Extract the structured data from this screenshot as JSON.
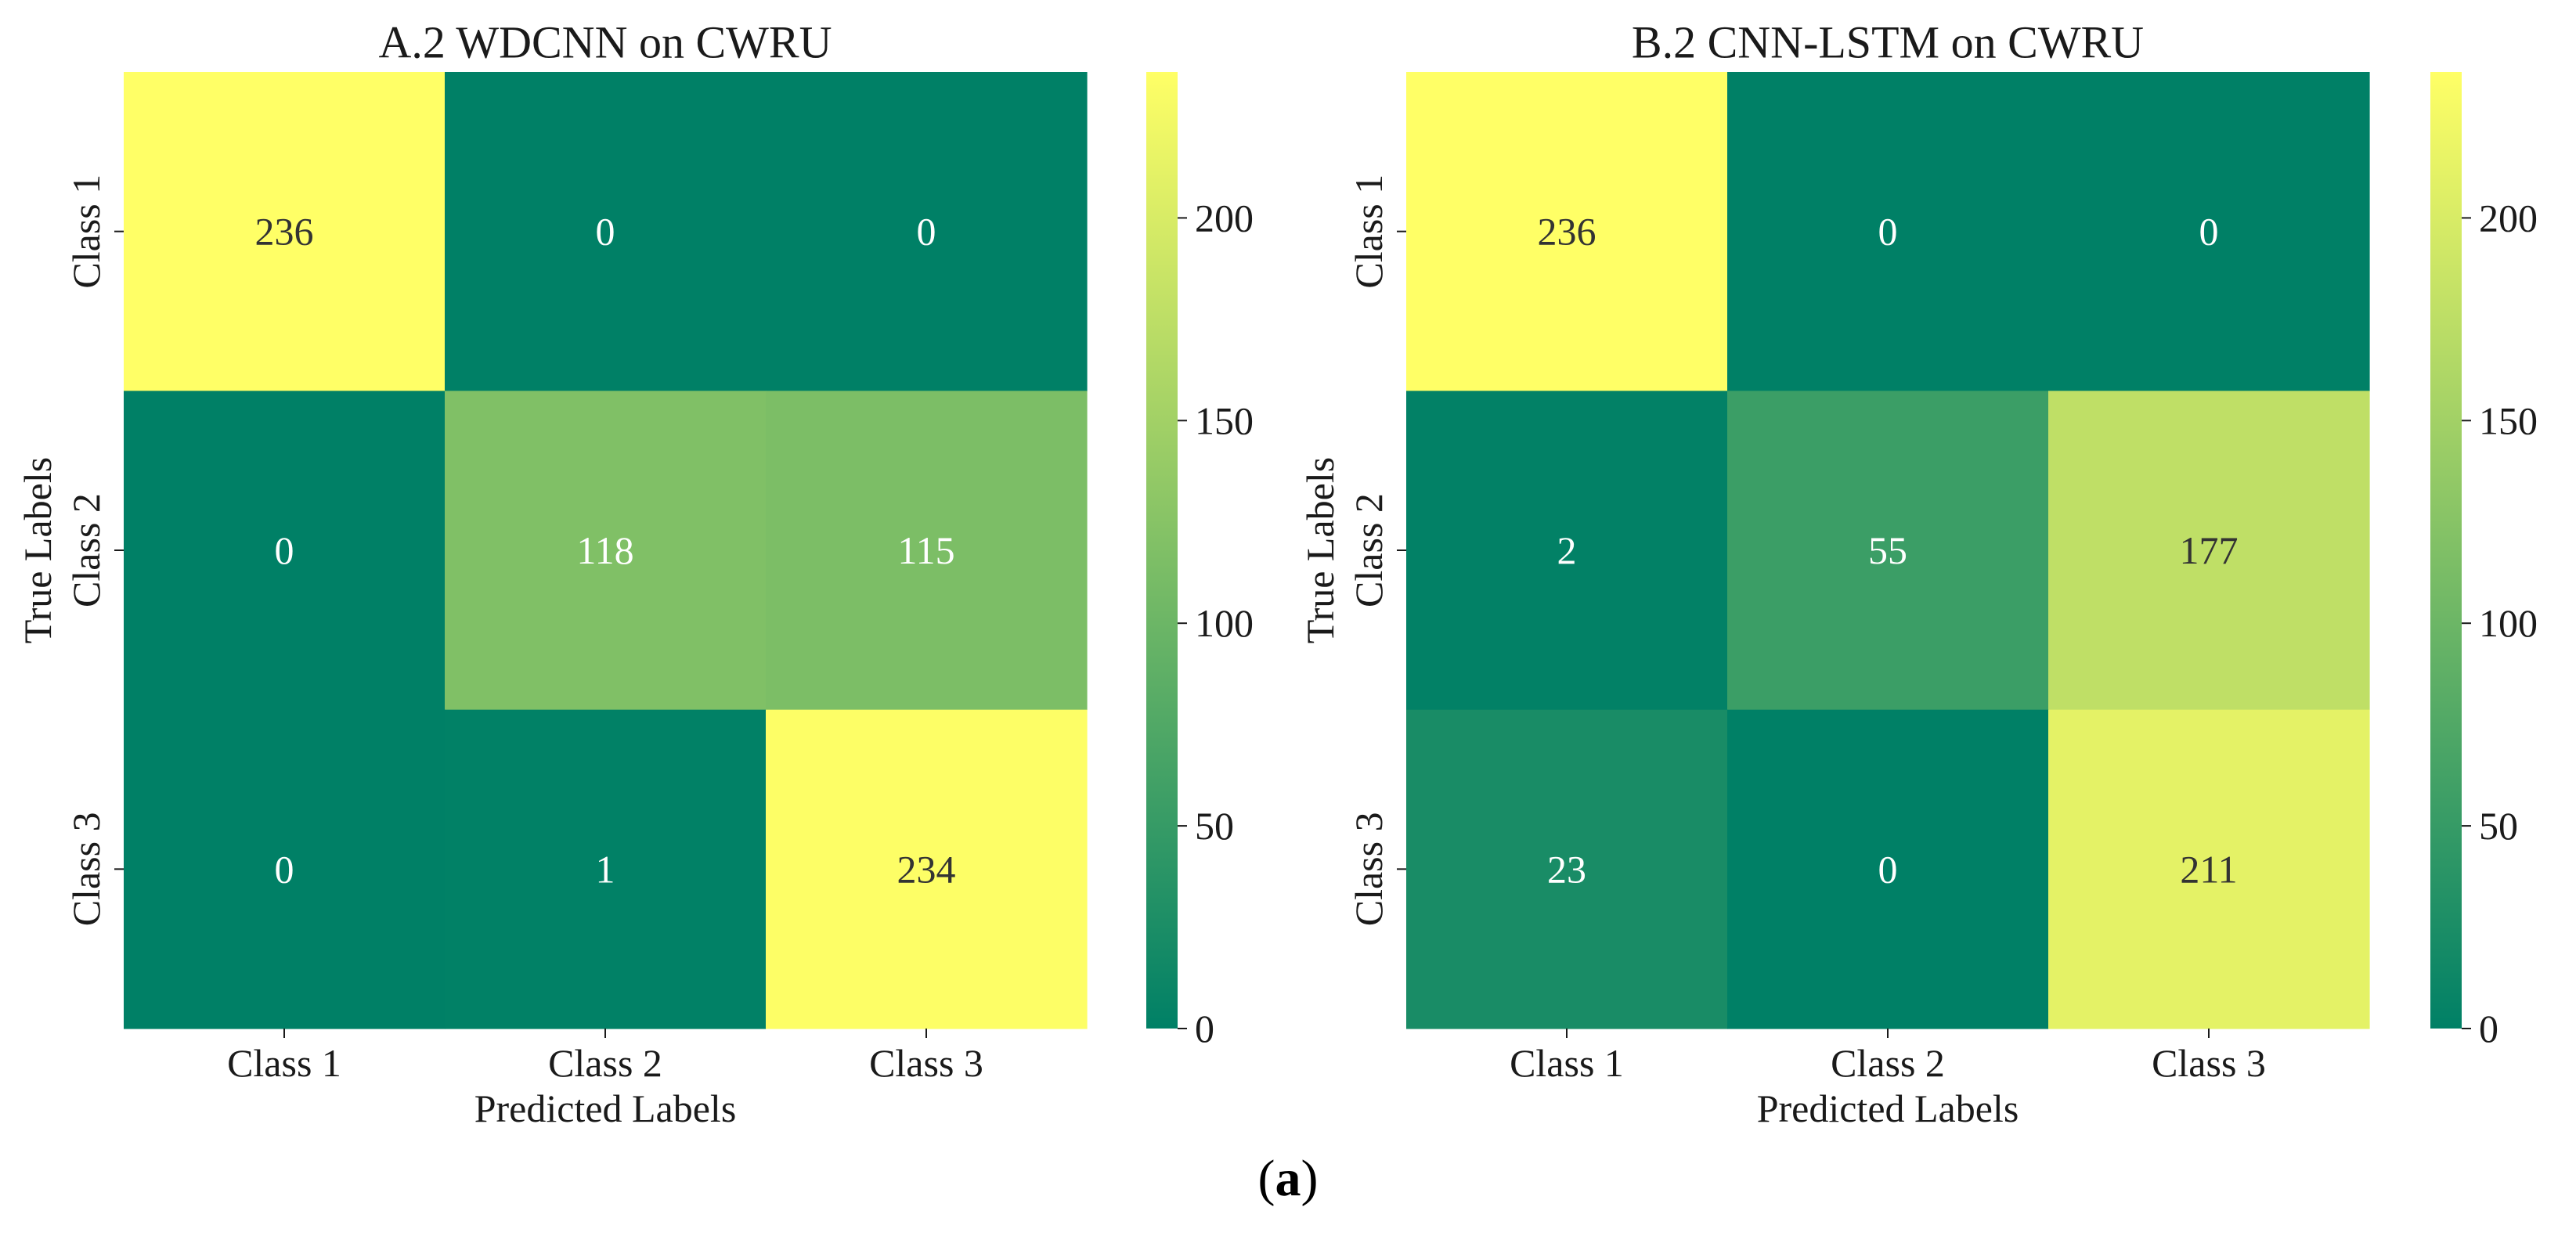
{
  "chart_data": [
    {
      "type": "heatmap",
      "title": "A.2 WDCNN on CWRU",
      "xlabel": "Predicted Labels",
      "ylabel": "True Labels",
      "x_categories": [
        "Class 1",
        "Class 2",
        "Class 3"
      ],
      "y_categories": [
        "Class 1",
        "Class 2",
        "Class 3"
      ],
      "values": [
        [
          236,
          0,
          0
        ],
        [
          0,
          118,
          115
        ],
        [
          0,
          1,
          234
        ]
      ],
      "colormap": "summer",
      "colorbar": {
        "range": [
          0,
          236
        ],
        "ticks": [
          0,
          50,
          100,
          150,
          200
        ]
      }
    },
    {
      "type": "heatmap",
      "title": "B.2 CNN-LSTM on CWRU",
      "xlabel": "Predicted Labels",
      "ylabel": "True Labels",
      "x_categories": [
        "Class 1",
        "Class 2",
        "Class 3"
      ],
      "y_categories": [
        "Class 1",
        "Class 2",
        "Class 3"
      ],
      "values": [
        [
          236,
          0,
          0
        ],
        [
          2,
          55,
          177
        ],
        [
          23,
          0,
          211
        ]
      ],
      "colormap": "summer",
      "colorbar": {
        "range": [
          0,
          236
        ],
        "ticks": [
          0,
          50,
          100,
          150,
          200
        ]
      }
    }
  ],
  "caption": {
    "open": "(",
    "label": "a",
    "close": ")"
  },
  "colors": {
    "low": "#008066",
    "high": "#ffff66",
    "text_light": "#ffffff",
    "text_dark": "#333333"
  }
}
